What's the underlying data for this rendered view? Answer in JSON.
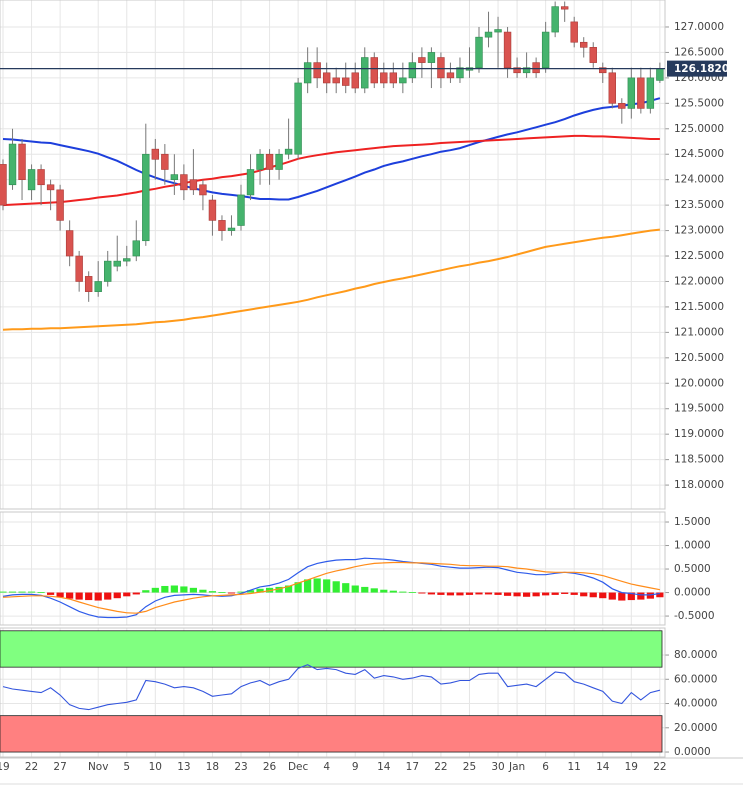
{
  "chart_data": [
    {
      "type": "candlestick",
      "categories": [
        "19",
        null,
        null,
        "22",
        null,
        null,
        "27",
        null,
        null,
        null,
        "Nov",
        null,
        null,
        "5",
        null,
        null,
        "10",
        null,
        null,
        "13",
        null,
        null,
        "18",
        null,
        null,
        "23",
        null,
        null,
        "26",
        null,
        null,
        "Dec",
        null,
        null,
        "4",
        null,
        null,
        "9",
        null,
        null,
        "14",
        null,
        null,
        "17",
        null,
        null,
        "22",
        null,
        null,
        "25",
        null,
        null,
        "30",
        null,
        "Jan",
        null,
        null,
        "6",
        null,
        null,
        "11",
        null,
        null,
        "14",
        null,
        null,
        "19",
        null,
        null,
        "22"
      ],
      "open": [
        124.3,
        123.9,
        124.7,
        123.8,
        124.2,
        123.9,
        123.8,
        123.0,
        122.5,
        122.1,
        121.8,
        122.0,
        122.3,
        122.4,
        122.5,
        122.8,
        124.6,
        124.5,
        124.0,
        124.1,
        124.0,
        123.9,
        123.6,
        123.2,
        123.0,
        123.1,
        123.7,
        124.2,
        124.5,
        124.2,
        124.5,
        124.5,
        125.9,
        126.3,
        126.1,
        126.0,
        126.0,
        126.1,
        125.8,
        126.4,
        126.1,
        126.1,
        125.9,
        126.0,
        126.4,
        126.3,
        126.4,
        126.1,
        126.0,
        126.15,
        126.2,
        126.8,
        126.9,
        126.9,
        126.2,
        126.1,
        126.3,
        126.2,
        126.9,
        127.4,
        127.1,
        126.7,
        126.6,
        126.2,
        126.1,
        125.5,
        125.4,
        126.0,
        125.4,
        125.95
      ],
      "high": [
        124.4,
        125.0,
        124.8,
        124.3,
        124.3,
        124.0,
        123.9,
        123.2,
        122.6,
        122.2,
        122.4,
        122.6,
        122.9,
        122.7,
        123.2,
        125.1,
        124.8,
        124.7,
        124.5,
        124.3,
        124.6,
        124.0,
        123.7,
        123.3,
        123.3,
        123.9,
        124.5,
        124.6,
        124.6,
        124.6,
        125.2,
        126.0,
        126.6,
        126.6,
        126.3,
        126.2,
        126.3,
        126.3,
        126.6,
        126.5,
        126.3,
        126.3,
        126.3,
        126.5,
        126.6,
        126.6,
        126.5,
        126.3,
        126.4,
        126.6,
        127.0,
        127.3,
        127.2,
        127.0,
        126.4,
        126.5,
        126.4,
        127.1,
        127.5,
        127.5,
        127.2,
        126.8,
        126.7,
        126.3,
        126.2,
        125.6,
        126.2,
        126.2,
        126.2,
        126.3
      ],
      "low": [
        123.4,
        123.8,
        123.6,
        123.6,
        123.5,
        123.4,
        123.0,
        122.3,
        121.8,
        121.6,
        121.7,
        121.9,
        122.2,
        122.3,
        122.4,
        122.7,
        124.0,
        123.9,
        123.7,
        123.6,
        123.7,
        123.4,
        122.9,
        122.8,
        122.9,
        123.0,
        123.6,
        123.9,
        123.9,
        124.0,
        124.4,
        124.4,
        125.7,
        125.8,
        125.7,
        125.7,
        125.7,
        125.7,
        125.7,
        125.8,
        125.8,
        125.8,
        125.7,
        125.9,
        126.0,
        125.8,
        125.8,
        125.9,
        125.9,
        126.0,
        126.1,
        126.6,
        126.2,
        126.0,
        126.0,
        126.0,
        126.0,
        126.1,
        126.8,
        127.1,
        126.6,
        126.4,
        126.2,
        125.9,
        125.4,
        125.1,
        125.2,
        125.3,
        125.3,
        125.9
      ],
      "close": [
        123.5,
        124.7,
        124.0,
        124.2,
        123.9,
        123.8,
        123.2,
        122.5,
        122.0,
        121.8,
        122.0,
        122.4,
        122.4,
        122.45,
        122.8,
        124.5,
        124.4,
        124.2,
        124.1,
        123.8,
        123.8,
        123.7,
        123.2,
        123.0,
        123.05,
        123.7,
        124.2,
        124.5,
        124.2,
        124.5,
        124.6,
        125.9,
        126.3,
        126.0,
        125.9,
        125.9,
        125.85,
        125.8,
        126.4,
        125.9,
        125.9,
        125.9,
        126.0,
        126.3,
        126.3,
        126.5,
        126.0,
        126.0,
        126.2,
        126.2,
        126.8,
        126.9,
        126.95,
        126.2,
        126.1,
        126.2,
        126.1,
        126.9,
        127.4,
        127.35,
        126.7,
        126.6,
        126.3,
        126.1,
        125.5,
        125.4,
        126.0,
        125.4,
        126.0,
        126.18
      ],
      "up_color": "#45b36d",
      "down_color": "#d9534f",
      "lines": [
        {
          "color": "#1d3fdc",
          "values": [
            124.8,
            124.79,
            124.77,
            124.75,
            124.73,
            124.72,
            124.68,
            124.64,
            124.6,
            124.56,
            124.51,
            124.44,
            124.37,
            124.28,
            124.19,
            124.11,
            124.04,
            123.98,
            123.93,
            123.88,
            123.83,
            123.79,
            123.75,
            123.72,
            123.7,
            123.68,
            123.65,
            123.62,
            123.62,
            123.61,
            123.61,
            123.66,
            123.72,
            123.78,
            123.85,
            123.92,
            123.99,
            124.06,
            124.14,
            124.2,
            124.27,
            124.32,
            124.36,
            124.41,
            124.46,
            124.5,
            124.55,
            124.58,
            124.62,
            124.68,
            124.74,
            124.79,
            124.84,
            124.89,
            124.93,
            124.98,
            125.03,
            125.08,
            125.13,
            125.19,
            125.26,
            125.32,
            125.37,
            125.41,
            125.43,
            125.45,
            125.48,
            125.5,
            125.55,
            125.6
          ]
        },
        {
          "color": "#ee2222",
          "values": [
            123.5,
            123.51,
            123.52,
            123.53,
            123.54,
            123.55,
            123.56,
            123.58,
            123.6,
            123.62,
            123.65,
            123.67,
            123.69,
            123.72,
            123.75,
            123.79,
            123.82,
            123.86,
            123.89,
            123.93,
            123.97,
            124.0,
            124.02,
            124.05,
            124.07,
            124.1,
            124.13,
            124.18,
            124.24,
            124.29,
            124.35,
            124.41,
            124.45,
            124.48,
            124.51,
            124.54,
            124.56,
            124.58,
            124.6,
            124.62,
            124.64,
            124.66,
            124.67,
            124.68,
            124.69,
            124.7,
            124.72,
            124.73,
            124.74,
            124.75,
            124.76,
            124.77,
            124.78,
            124.79,
            124.8,
            124.81,
            124.82,
            124.83,
            124.84,
            124.85,
            124.86,
            124.86,
            124.85,
            124.85,
            124.84,
            124.83,
            124.82,
            124.81,
            124.8,
            124.8
          ]
        },
        {
          "color": "#ff9a1a",
          "values": [
            121.05,
            121.06,
            121.06,
            121.07,
            121.07,
            121.08,
            121.08,
            121.09,
            121.1,
            121.11,
            121.12,
            121.13,
            121.14,
            121.15,
            121.16,
            121.18,
            121.2,
            121.21,
            121.23,
            121.25,
            121.28,
            121.3,
            121.33,
            121.36,
            121.39,
            121.42,
            121.45,
            121.48,
            121.51,
            121.54,
            121.57,
            121.6,
            121.64,
            121.69,
            121.73,
            121.77,
            121.81,
            121.86,
            121.9,
            121.95,
            121.99,
            122.03,
            122.06,
            122.1,
            122.14,
            122.18,
            122.22,
            122.26,
            122.3,
            122.33,
            122.37,
            122.4,
            122.44,
            122.48,
            122.53,
            122.58,
            122.63,
            122.68,
            122.71,
            122.74,
            122.77,
            122.8,
            122.83,
            122.86,
            122.88,
            122.91,
            122.94,
            122.97,
            123.0,
            123.02
          ]
        }
      ],
      "last_price": {
        "value": 126.182,
        "label": "126.1820"
      },
      "last_price_color": "#263a5c",
      "ylim": [
        117.53,
        127.53
      ],
      "yticks": [
        {
          "value": 118.0,
          "label": "118.0000"
        },
        {
          "value": 118.5,
          "label": "118.5000"
        },
        {
          "value": 119.0,
          "label": "119.0000"
        },
        {
          "value": 119.5,
          "label": "119.5000"
        },
        {
          "value": 120.0,
          "label": "120.0000"
        },
        {
          "value": 120.5,
          "label": "120.5000"
        },
        {
          "value": 121.0,
          "label": "121.0000"
        },
        {
          "value": 121.5,
          "label": "121.5000"
        },
        {
          "value": 122.0,
          "label": "122.0000"
        },
        {
          "value": 122.5,
          "label": "122.5000"
        },
        {
          "value": 123.0,
          "label": "123.0000"
        },
        {
          "value": 123.5,
          "label": "123.5000"
        },
        {
          "value": 124.0,
          "label": "124.0000"
        },
        {
          "value": 124.5,
          "label": "124.5000"
        },
        {
          "value": 125.0,
          "label": "125.0000"
        },
        {
          "value": 125.5,
          "label": "125.5000"
        },
        {
          "value": 126.0,
          "label": "126.0000"
        },
        {
          "value": 126.5,
          "label": "126.5000"
        },
        {
          "value": 127.0,
          "label": "127.0000"
        }
      ],
      "grid": true
    },
    {
      "type": "macd",
      "histogram": {
        "up_color": "#33ee33",
        "down_color": "#ee1111",
        "values": [
          0.02,
          0.02,
          0.02,
          0.02,
          0.01,
          -0.05,
          -0.1,
          -0.13,
          -0.15,
          -0.16,
          -0.17,
          -0.15,
          -0.12,
          -0.08,
          -0.04,
          0.05,
          0.1,
          0.14,
          0.15,
          0.13,
          0.1,
          0.06,
          0.03,
          0.01,
          -0.02,
          0.02,
          0.05,
          0.08,
          0.1,
          0.12,
          0.15,
          0.22,
          0.28,
          0.3,
          0.28,
          0.24,
          0.2,
          0.15,
          0.12,
          0.09,
          0.06,
          0.04,
          0.02,
          0.01,
          -0.02,
          -0.04,
          -0.05,
          -0.06,
          -0.06,
          -0.05,
          -0.04,
          -0.04,
          -0.05,
          -0.07,
          -0.08,
          -0.09,
          -0.08,
          -0.06,
          -0.05,
          -0.03,
          -0.05,
          -0.08,
          -0.1,
          -0.12,
          -0.15,
          -0.17,
          -0.16,
          -0.15,
          -0.13,
          -0.1
        ]
      },
      "lines": [
        {
          "color": "#2e5bea",
          "values": [
            -0.08,
            -0.05,
            -0.04,
            -0.04,
            -0.06,
            -0.12,
            -0.2,
            -0.3,
            -0.4,
            -0.47,
            -0.52,
            -0.53,
            -0.53,
            -0.52,
            -0.47,
            -0.3,
            -0.18,
            -0.1,
            -0.06,
            -0.05,
            -0.04,
            -0.05,
            -0.07,
            -0.08,
            -0.07,
            -0.02,
            0.05,
            0.12,
            0.15,
            0.2,
            0.28,
            0.42,
            0.55,
            0.62,
            0.66,
            0.69,
            0.7,
            0.7,
            0.73,
            0.72,
            0.71,
            0.69,
            0.66,
            0.64,
            0.62,
            0.6,
            0.56,
            0.54,
            0.52,
            0.52,
            0.53,
            0.54,
            0.53,
            0.48,
            0.43,
            0.41,
            0.38,
            0.38,
            0.41,
            0.43,
            0.41,
            0.37,
            0.31,
            0.22,
            0.08,
            0.0,
            -0.02,
            -0.05,
            -0.05,
            -0.02
          ]
        },
        {
          "color": "#ff8c1a",
          "values": [
            -0.1,
            -0.09,
            -0.08,
            -0.07,
            -0.07,
            -0.08,
            -0.1,
            -0.14,
            -0.2,
            -0.26,
            -0.32,
            -0.36,
            -0.4,
            -0.43,
            -0.44,
            -0.4,
            -0.32,
            -0.26,
            -0.2,
            -0.16,
            -0.12,
            -0.09,
            -0.07,
            -0.06,
            -0.05,
            -0.04,
            -0.02,
            0.01,
            0.04,
            0.08,
            0.13,
            0.2,
            0.27,
            0.34,
            0.41,
            0.46,
            0.5,
            0.55,
            0.59,
            0.62,
            0.63,
            0.64,
            0.64,
            0.63,
            0.63,
            0.62,
            0.61,
            0.6,
            0.58,
            0.57,
            0.57,
            0.56,
            0.56,
            0.55,
            0.52,
            0.5,
            0.47,
            0.44,
            0.43,
            0.43,
            0.43,
            0.42,
            0.4,
            0.36,
            0.3,
            0.24,
            0.18,
            0.14,
            0.1,
            0.06
          ]
        }
      ],
      "ylim": [
        -0.69,
        1.713
      ],
      "yticks": [
        {
          "value": -0.5,
          "label": "-0.5000"
        },
        {
          "value": 0,
          "label": "0.0000"
        },
        {
          "value": 0.5,
          "label": "0.5000"
        },
        {
          "value": 1.0,
          "label": "1.0000"
        },
        {
          "value": 1.5,
          "label": "1.5000"
        }
      ]
    },
    {
      "type": "rsi",
      "color": "#3355dd",
      "values": [
        54,
        52,
        51,
        50,
        49,
        53,
        47,
        39,
        36,
        35,
        37,
        39,
        40,
        41,
        43,
        59,
        58,
        56,
        53,
        54,
        53,
        50,
        46,
        47,
        48,
        54,
        57,
        59,
        55,
        58,
        60,
        69,
        72,
        68,
        69,
        68,
        65,
        64,
        68,
        61,
        63,
        62,
        60,
        61,
        63,
        62,
        56,
        57,
        59,
        59,
        64,
        65,
        65,
        54,
        55,
        56,
        54,
        60,
        66,
        65,
        58,
        56,
        53,
        50,
        42,
        40,
        49,
        43,
        49,
        51
      ],
      "bands": [
        {
          "from": 70,
          "to": 100,
          "color": "#80ff80"
        },
        {
          "from": 0,
          "to": 30,
          "color": "#ff8080"
        }
      ],
      "ylim": [
        -4.1,
        102.3
      ],
      "yticks": [
        {
          "value": 0,
          "label": "0.0000"
        },
        {
          "value": 20,
          "label": "20.0000"
        },
        {
          "value": 40,
          "label": "40.0000"
        },
        {
          "value": 60,
          "label": "60.0000"
        },
        {
          "value": 80,
          "label": "80.0000"
        }
      ]
    }
  ]
}
